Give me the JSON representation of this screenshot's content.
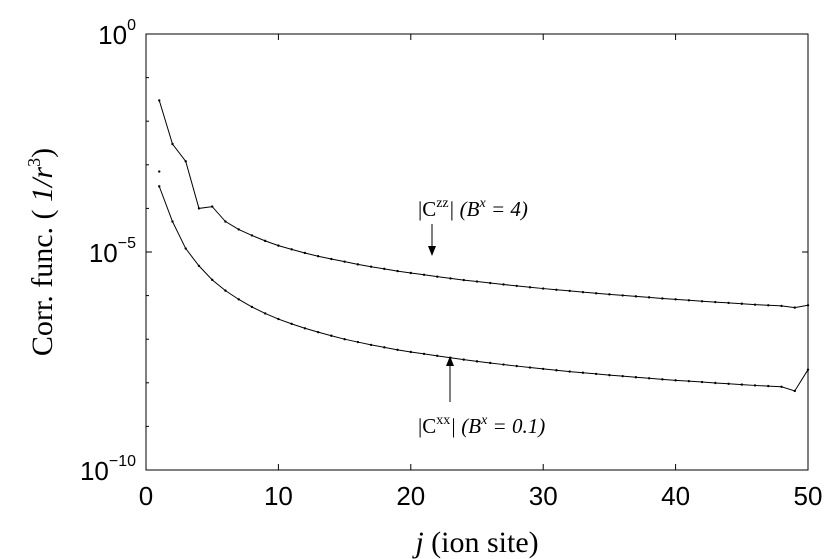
{
  "chart_data": {
    "type": "line",
    "x_ticks": [
      "0",
      "10",
      "20",
      "30",
      "40",
      "50"
    ],
    "y_ticks": [
      {
        "base": "10",
        "exp": "0"
      },
      {
        "base": "10",
        "exp": "−5"
      },
      {
        "base": "10",
        "exp": "−10"
      }
    ],
    "xlim": [
      0,
      50
    ],
    "ylim": [
      1e-10,
      1
    ],
    "yscale": "log",
    "xlabel": {
      "italic": "j",
      "rest": " (ion site)"
    },
    "ylabel": {
      "main": "Corr. func. ( ",
      "unit": "1/r",
      "exp": "3",
      "close": ")"
    },
    "series": [
      {
        "annotation": {
          "pre": "|C",
          "sup": "zz",
          "mid": "| (B",
          "sup2": "x",
          "post": " = 4)"
        },
        "x": [
          1,
          2,
          3,
          4,
          5,
          6,
          7,
          8,
          9,
          10,
          11,
          12,
          13,
          14,
          15,
          16,
          17,
          18,
          19,
          20,
          21,
          22,
          23,
          24,
          25,
          26,
          27,
          28,
          29,
          30,
          31,
          32,
          33,
          34,
          35,
          36,
          37,
          38,
          39,
          40,
          41,
          42,
          43,
          44,
          45,
          46,
          47,
          48,
          49,
          50
        ],
        "y": [
          0.03,
          0.003,
          0.0012,
          0.0001,
          0.00011,
          5e-05,
          3.3e-05,
          2.4e-05,
          1.8e-05,
          1.4e-05,
          1.15e-05,
          9.5e-06,
          8e-06,
          6.9e-06,
          6e-06,
          5.2e-06,
          4.6e-06,
          4.1e-06,
          3.65e-06,
          3.3e-06,
          3e-06,
          2.72e-06,
          2.48e-06,
          2.27e-06,
          2.1e-06,
          1.94e-06,
          1.8e-06,
          1.67e-06,
          1.55e-06,
          1.45e-06,
          1.36e-06,
          1.28e-06,
          1.2e-06,
          1.13e-06,
          1.07e-06,
          1.01e-06,
          9.6e-07,
          9.1e-07,
          8.6e-07,
          8.2e-07,
          7.8e-07,
          7.4e-07,
          7.1e-07,
          6.8e-07,
          6.5e-07,
          6.2e-07,
          6e-07,
          5.8e-07,
          5.3e-07,
          6e-07
        ],
        "points_y1": 0.0007
      },
      {
        "annotation": {
          "pre": "|C",
          "sup": "xx",
          "mid": "| (B",
          "sup2": "x",
          "post": " = 0.1)"
        },
        "x": [
          1,
          2,
          3,
          4,
          5,
          6,
          7,
          8,
          9,
          10,
          11,
          12,
          13,
          14,
          15,
          16,
          17,
          18,
          19,
          20,
          21,
          22,
          23,
          24,
          25,
          26,
          27,
          28,
          29,
          30,
          31,
          32,
          33,
          34,
          35,
          36,
          37,
          38,
          39,
          40,
          41,
          42,
          43,
          44,
          45,
          46,
          47,
          48,
          49,
          50
        ],
        "y": [
          0.00032,
          5e-05,
          1.2e-05,
          4.8e-06,
          2.3e-06,
          1.3e-06,
          8.2e-07,
          5.5e-07,
          3.9e-07,
          2.9e-07,
          2.25e-07,
          1.78e-07,
          1.45e-07,
          1.2e-07,
          1e-07,
          8.6e-08,
          7.4e-08,
          6.5e-08,
          5.7e-08,
          5.1e-08,
          4.6e-08,
          4.15e-08,
          3.75e-08,
          3.4e-08,
          3.1e-08,
          2.85e-08,
          2.62e-08,
          2.42e-08,
          2.24e-08,
          2.08e-08,
          1.94e-08,
          1.81e-08,
          1.7e-08,
          1.6e-08,
          1.5e-08,
          1.42e-08,
          1.34e-08,
          1.27e-08,
          1.2e-08,
          1.14e-08,
          1.09e-08,
          1.04e-08,
          9.9e-09,
          9.5e-09,
          9.1e-09,
          8.7e-09,
          8.4e-09,
          8.1e-09,
          6.5e-09,
          2e-08
        ]
      }
    ],
    "grid": false,
    "markers": "dots"
  }
}
